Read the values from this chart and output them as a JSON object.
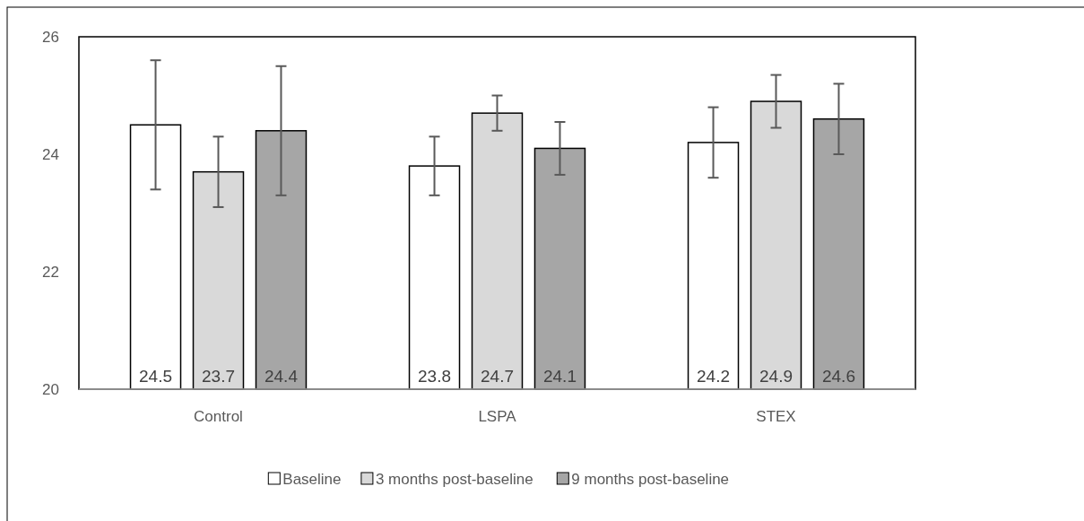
{
  "chart_data": {
    "type": "bar",
    "categories": [
      "Control",
      "LSPA",
      "STEX"
    ],
    "series": [
      {
        "name": "Baseline",
        "color": "#ffffff",
        "values": [
          24.5,
          23.8,
          24.2
        ],
        "errors": [
          1.1,
          0.5,
          0.6
        ]
      },
      {
        "name": "3 months post-baseline",
        "color": "#d9d9d9",
        "values": [
          23.7,
          24.7,
          24.9
        ],
        "errors": [
          0.6,
          0.3,
          0.45
        ]
      },
      {
        "name": "9 months post-baseline",
        "color": "#a6a6a6",
        "values": [
          24.4,
          24.1,
          24.6
        ],
        "errors": [
          1.1,
          0.45,
          0.6
        ]
      }
    ],
    "ylim": [
      20,
      26
    ],
    "yticks": [
      20,
      22,
      24,
      26
    ],
    "grid": false,
    "legend": "bottom",
    "data_labels": true
  }
}
